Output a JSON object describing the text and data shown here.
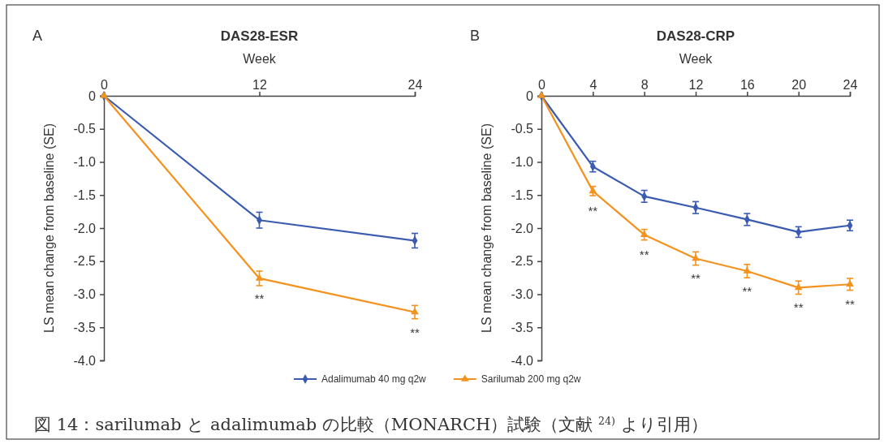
{
  "chart_data": [
    {
      "type": "line",
      "title": "DAS28-ESR",
      "xlabel": "Week",
      "ylabel": "LS mean change from baseline (SE)",
      "x": [
        0,
        12,
        24
      ],
      "xlim": [
        0,
        24
      ],
      "xticks": [
        0,
        12,
        24
      ],
      "ylim": [
        -4,
        0
      ],
      "yticks": [
        0,
        -0.5,
        {
          "value": -1,
          "label": "-1.0"
        },
        -1.5,
        {
          "value": -2,
          "label": "-2.0"
        },
        -2.5,
        {
          "value": -3,
          "label": "-3.0"
        },
        -3.5,
        {
          "value": -4,
          "label": "-4.0"
        }
      ],
      "series": [
        {
          "color": "#3a5bb0",
          "marker": "diamond",
          "values": [
            0,
            -1.88,
            -2.19
          ],
          "errors": [
            null,
            0.12,
            0.11
          ]
        },
        {
          "color": "#f5921e",
          "marker": "triangle",
          "values": [
            0,
            -2.76,
            -3.27
          ],
          "errors": [
            null,
            0.11,
            0.1
          ]
        }
      ],
      "annotations": [
        "A",
        {
          "text": "**",
          "x": 12,
          "y": -2.76
        },
        {
          "text": "**",
          "x": 24,
          "y": -3.27
        }
      ]
    },
    {
      "type": "line",
      "title": "DAS28-CRP",
      "xlabel": "Week",
      "ylabel": "LS mean change from baseline (SE)",
      "x": [
        0,
        4,
        8,
        12,
        16,
        20,
        24
      ],
      "xlim": [
        0,
        24
      ],
      "xticks": [
        0,
        4,
        8,
        12,
        16,
        20,
        24
      ],
      "ylim": [
        -4,
        0
      ],
      "yticks": [
        0,
        -0.5,
        {
          "value": -1,
          "label": "-1.0"
        },
        -1.5,
        {
          "value": -2,
          "label": "-2.0"
        },
        -2.5,
        {
          "value": -3,
          "label": "-3.0"
        },
        -3.5,
        {
          "value": -4,
          "label": "-4.0"
        }
      ],
      "legend": "bottom",
      "series": [
        {
          "name": "Adalimumab 40 mg q2w",
          "color": "#3a5bb0",
          "marker": "diamond",
          "values": [
            0,
            -1.07,
            -1.52,
            -1.69,
            -1.87,
            -2.06,
            -1.96
          ],
          "errors": [
            null,
            0.08,
            0.09,
            0.09,
            0.09,
            0.08,
            0.08
          ]
        },
        {
          "name": "Sarilumab 200 mg q2w",
          "color": "#f5921e",
          "marker": "triangle",
          "values": [
            0,
            -1.44,
            -2.1,
            -2.46,
            -2.65,
            -2.9,
            -2.85
          ],
          "errors": [
            null,
            0.07,
            0.08,
            0.1,
            0.1,
            0.1,
            0.09
          ]
        }
      ],
      "annotations": [
        "B",
        "図 14：sarilumab と adalimumab の比較（MONARCH）試験（文献 $^{24)}$ より引用）",
        {
          "text": "**",
          "x": 4,
          "y": -1.44
        },
        {
          "text": "**",
          "x": 8,
          "y": -2.1
        },
        {
          "text": "**",
          "x": 12,
          "y": -2.46
        },
        {
          "text": "**",
          "x": 16,
          "y": -2.65
        },
        {
          "text": "**",
          "x": 20,
          "y": -2.9
        },
        {
          "text": "**",
          "x": 24,
          "y": -2.85
        }
      ]
    }
  ]
}
